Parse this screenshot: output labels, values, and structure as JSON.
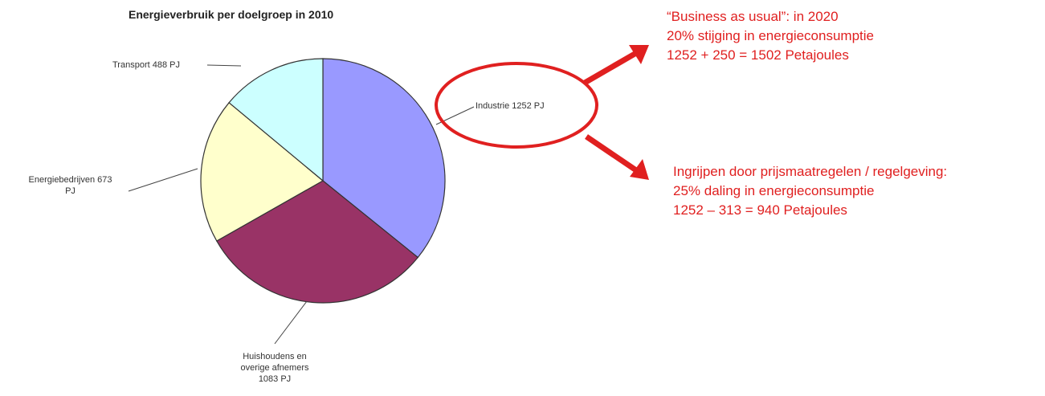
{
  "chart_data": {
    "type": "pie",
    "title": "Energieverbruik per doelgroep in 2010",
    "values": [
      1252,
      1083,
      673,
      488
    ],
    "value_labels": [
      "Industrie 1252 PJ",
      "Huishoudens en\noverige afnemers\n1083 PJ",
      "Energiebedrijven 673\nPJ",
      "Transport 488 PJ"
    ],
    "colors": [
      "#9999ff",
      "#993366",
      "#ffffcc",
      "#ccffff"
    ]
  },
  "annotations": [
    {
      "lines": [
        "“Business as usual”: in 2020",
        "20% stijging in energieconsumptie",
        "1252 + 250 = 1502 Petajoules"
      ]
    },
    {
      "lines": [
        "Ingrijpen door prijsmaatregelen / regelgeving:",
        "25% daling in energieconsumptie",
        "1252 – 313 = 940 Petajoules"
      ]
    }
  ]
}
